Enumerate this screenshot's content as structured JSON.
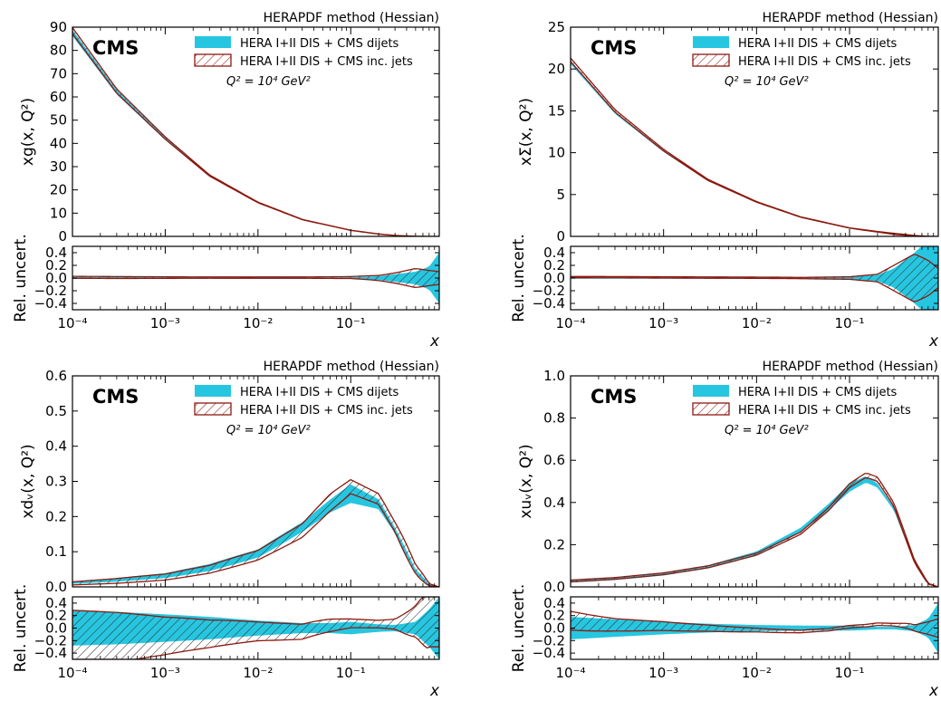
{
  "common": {
    "method_label": "HERAPDF method (Hessian)",
    "experiment_label": "CMS",
    "legend": [
      "HERA I+II DIS + CMS dijets",
      "HERA I+II DIS + CMS inc. jets"
    ],
    "scale_label": "Q² = 10⁴ GeV²",
    "x_label": "x",
    "ratio_ylabel": "Rel. uncert.",
    "x_scale": "log",
    "xlim": [
      0.0001,
      0.9
    ],
    "x_ticks": [
      "10⁻⁴",
      "10⁻³",
      "10⁻²",
      "10⁻¹"
    ],
    "ratio_ticks": [
      "0.4",
      "0.2",
      "0.0",
      "−0.2",
      "−0.4"
    ],
    "colors": {
      "dijets_band": "#26c6e0",
      "incjets_hatch": "#8b1a10",
      "hatch_lines": "#333333"
    }
  },
  "chart_data": [
    {
      "type": "area",
      "ylabel": "xg(x, Q²)",
      "ylim": [
        0,
        90
      ],
      "y_ticks": [
        "0",
        "10",
        "20",
        "30",
        "40",
        "50",
        "60",
        "70",
        "80",
        "90"
      ],
      "x": [
        0.0001,
        0.0003,
        0.001,
        0.003,
        0.01,
        0.03,
        0.1,
        0.2,
        0.3,
        0.5,
        0.7,
        0.9
      ],
      "series": [
        {
          "name": "HERA I+II DIS + CMS dijets",
          "central": [
            87.5,
            62,
            42,
            26,
            14.5,
            7.2,
            2.6,
            1.0,
            0.4,
            0.05,
            0.005,
            0.0
          ],
          "rel_unc": [
            0.015,
            0.015,
            0.012,
            0.01,
            0.01,
            0.01,
            0.012,
            0.03,
            0.06,
            0.1,
            0.18,
            0.4
          ]
        },
        {
          "name": "HERA I+II DIS + CMS inc. jets",
          "central": [
            88.5,
            62.5,
            42.3,
            26.2,
            14.6,
            7.25,
            2.62,
            1.0,
            0.4,
            0.05,
            0.005,
            0.0
          ],
          "rel_unc": [
            0.015,
            0.015,
            0.012,
            0.01,
            0.01,
            0.01,
            0.015,
            0.04,
            0.08,
            0.15,
            0.12,
            0.1
          ]
        }
      ]
    },
    {
      "type": "area",
      "ylabel": "xΣ(x, Q²)",
      "ylim": [
        0,
        25
      ],
      "y_ticks": [
        "0",
        "5",
        "10",
        "15",
        "20",
        "25"
      ],
      "x": [
        0.0001,
        0.0003,
        0.001,
        0.003,
        0.01,
        0.03,
        0.1,
        0.2,
        0.3,
        0.5,
        0.7,
        0.9
      ],
      "series": [
        {
          "name": "HERA I+II DIS + CMS dijets",
          "central": [
            20.8,
            14.8,
            10.2,
            6.7,
            4.1,
            2.3,
            1.0,
            0.55,
            0.3,
            0.08,
            0.01,
            0.0
          ],
          "rel_unc": [
            0.01,
            0.01,
            0.01,
            0.01,
            0.01,
            0.01,
            0.02,
            0.05,
            0.15,
            0.4,
            0.6,
            0.6
          ]
        },
        {
          "name": "HERA I+II DIS + CMS inc. jets",
          "central": [
            21.1,
            15.0,
            10.3,
            6.75,
            4.12,
            2.3,
            1.0,
            0.55,
            0.3,
            0.08,
            0.01,
            0.0
          ],
          "rel_unc": [
            0.01,
            0.01,
            0.01,
            0.01,
            0.01,
            0.01,
            0.02,
            0.06,
            0.2,
            0.38,
            0.28,
            0.15
          ]
        }
      ]
    },
    {
      "type": "area",
      "ylabel": "xdᵥ(x, Q²)",
      "ylim": [
        0,
        0.6
      ],
      "y_ticks": [
        "0.0",
        "0.1",
        "0.2",
        "0.3",
        "0.4",
        "0.5",
        "0.6"
      ],
      "x": [
        0.0001,
        0.0003,
        0.001,
        0.003,
        0.01,
        0.03,
        0.06,
        0.1,
        0.2,
        0.3,
        0.5,
        0.7,
        0.9
      ],
      "series": [
        {
          "name": "HERA I+II DIS + CMS dijets",
          "central": [
            0.012,
            0.02,
            0.032,
            0.055,
            0.095,
            0.17,
            0.23,
            0.265,
            0.235,
            0.16,
            0.045,
            0.005,
            0.0
          ],
          "rel_unc": [
            0.28,
            0.26,
            0.22,
            0.18,
            0.12,
            0.08,
            0.08,
            0.1,
            0.06,
            0.05,
            0.1,
            0.3,
            0.5
          ]
        },
        {
          "name": "HERA I+II DIS + CMS inc. jets",
          "central": [
            0.01,
            0.017,
            0.028,
            0.05,
            0.09,
            0.16,
            0.24,
            0.285,
            0.25,
            0.17,
            0.05,
            0.006,
            0.0
          ],
          "rel_unc": [
            0.45,
            0.4,
            0.3,
            0.22,
            0.15,
            0.12,
            0.1,
            0.07,
            0.06,
            0.08,
            0.25,
            0.5,
            0.5
          ]
        }
      ]
    },
    {
      "type": "area",
      "ylabel": "xuᵥ(x, Q²)",
      "ylim": [
        0,
        1.0
      ],
      "y_ticks": [
        "0.0",
        "0.2",
        "0.4",
        "0.6",
        "0.8",
        "1.0"
      ],
      "x": [
        0.0001,
        0.0003,
        0.001,
        0.003,
        0.01,
        0.03,
        0.06,
        0.1,
        0.15,
        0.2,
        0.3,
        0.5,
        0.7,
        0.9
      ],
      "series": [
        {
          "name": "HERA I+II DIS + CMS dijets",
          "central": [
            0.025,
            0.038,
            0.06,
            0.095,
            0.16,
            0.27,
            0.38,
            0.47,
            0.51,
            0.48,
            0.37,
            0.12,
            0.015,
            0.0
          ],
          "rel_unc": [
            0.18,
            0.14,
            0.1,
            0.07,
            0.05,
            0.04,
            0.04,
            0.04,
            0.03,
            0.02,
            0.02,
            0.05,
            0.15,
            0.4
          ]
        },
        {
          "name": "HERA I+II DIS + CMS inc. jets",
          "central": [
            0.028,
            0.04,
            0.062,
            0.095,
            0.155,
            0.255,
            0.37,
            0.48,
            0.53,
            0.51,
            0.39,
            0.12,
            0.015,
            0.0
          ],
          "rel_unc": [
            0.15,
            0.1,
            0.07,
            0.05,
            0.03,
            0.02,
            0.02,
            0.02,
            0.02,
            0.02,
            0.02,
            0.05,
            0.1,
            0.15
          ]
        }
      ]
    }
  ]
}
